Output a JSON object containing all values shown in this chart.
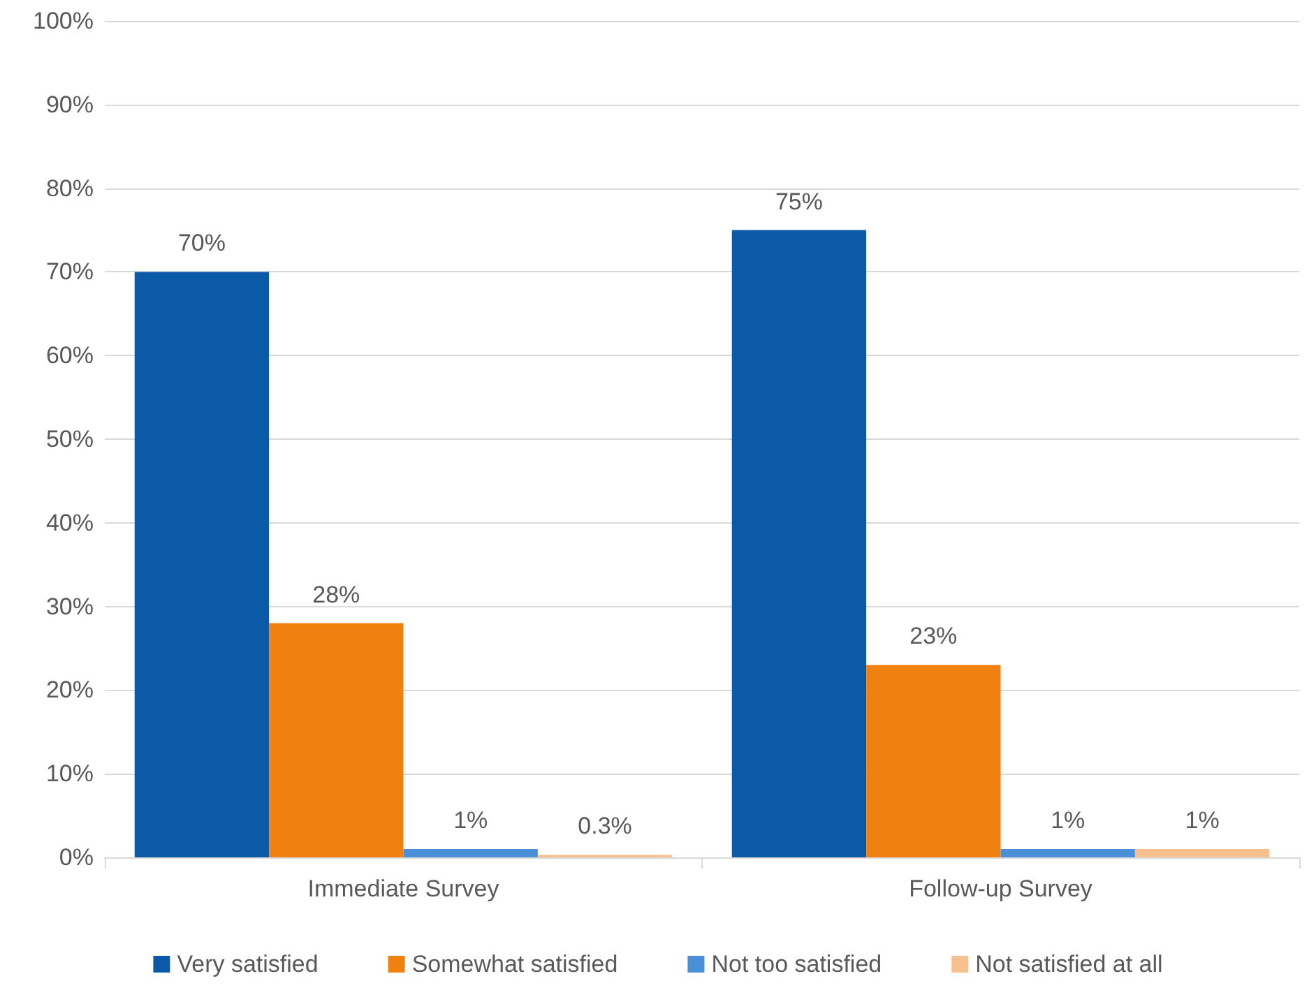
{
  "chart_data": {
    "type": "bar",
    "categories": [
      "Immediate Survey",
      "Follow-up Survey"
    ],
    "series": [
      {
        "name": "Very satisfied",
        "color": "#0b5aa8",
        "values": [
          70,
          75
        ],
        "value_labels": [
          "70%",
          "75%"
        ]
      },
      {
        "name": "Somewhat satisfied",
        "color": "#f08010",
        "values": [
          28,
          23
        ],
        "value_labels": [
          "28%",
          "23%"
        ]
      },
      {
        "name": "Not too satisfied",
        "color": "#4a90d8",
        "values": [
          1,
          1
        ],
        "value_labels": [
          "1%",
          "1%"
        ]
      },
      {
        "name": "Not satisfied at all",
        "color": "#f8c08c",
        "values": [
          0.3,
          1
        ],
        "value_labels": [
          "0.3%",
          "1%"
        ]
      }
    ],
    "ylim": [
      0,
      100
    ],
    "yticks": [
      {
        "value": 0,
        "label": "0%"
      },
      {
        "value": 10,
        "label": "10%"
      },
      {
        "value": 20,
        "label": "20%"
      },
      {
        "value": 30,
        "label": "30%"
      },
      {
        "value": 40,
        "label": "40%"
      },
      {
        "value": 50,
        "label": "50%"
      },
      {
        "value": 60,
        "label": "60%"
      },
      {
        "value": 70,
        "label": "70%"
      },
      {
        "value": 80,
        "label": "80%"
      },
      {
        "value": 90,
        "label": "90%"
      },
      {
        "value": 100,
        "label": "100%"
      }
    ],
    "grid": "y",
    "legend": "bottom"
  }
}
